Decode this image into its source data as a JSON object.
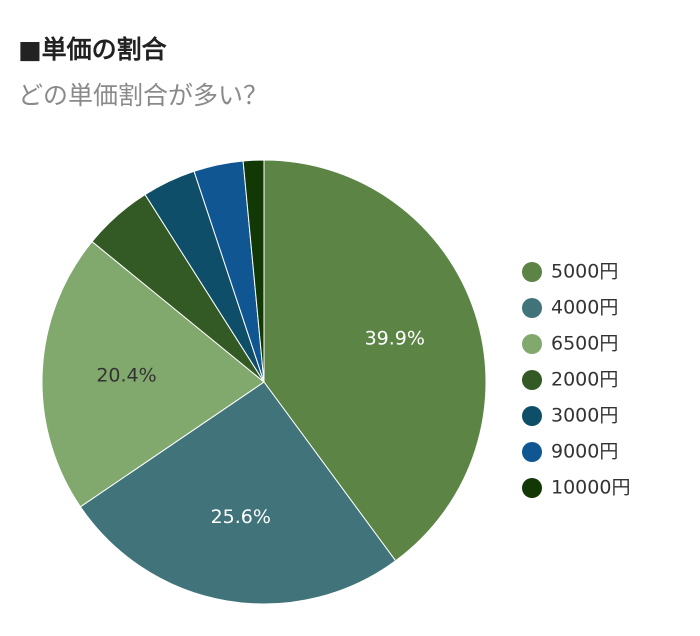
{
  "header": {
    "title": "■単価の割合",
    "subtitle": "どの単価割合が多い？"
  },
  "chart_data": {
    "type": "pie",
    "title": "■単価の割合",
    "subtitle": "どの単価割合が多い？",
    "categories": [
      "5000円",
      "4000円",
      "6500円",
      "2000円",
      "3000円",
      "9000円",
      "10000円"
    ],
    "values": [
      39.9,
      25.6,
      20.4,
      5.1,
      3.9,
      3.6,
      1.5
    ],
    "data_labels": [
      "39.9%",
      "25.6%",
      "20.4%",
      "",
      "",
      "",
      ""
    ],
    "colors": [
      "#5b8445",
      "#40737a",
      "#81a96d",
      "#335a24",
      "#0e4e68",
      "#0f5693",
      "#123905"
    ],
    "label_colors": [
      "#ffffff",
      "#ffffff",
      "#333333",
      "#ffffff",
      "#ffffff",
      "#ffffff",
      "#ffffff"
    ],
    "legend_position": "right",
    "start_angle_deg": 0,
    "direction": "clockwise"
  }
}
